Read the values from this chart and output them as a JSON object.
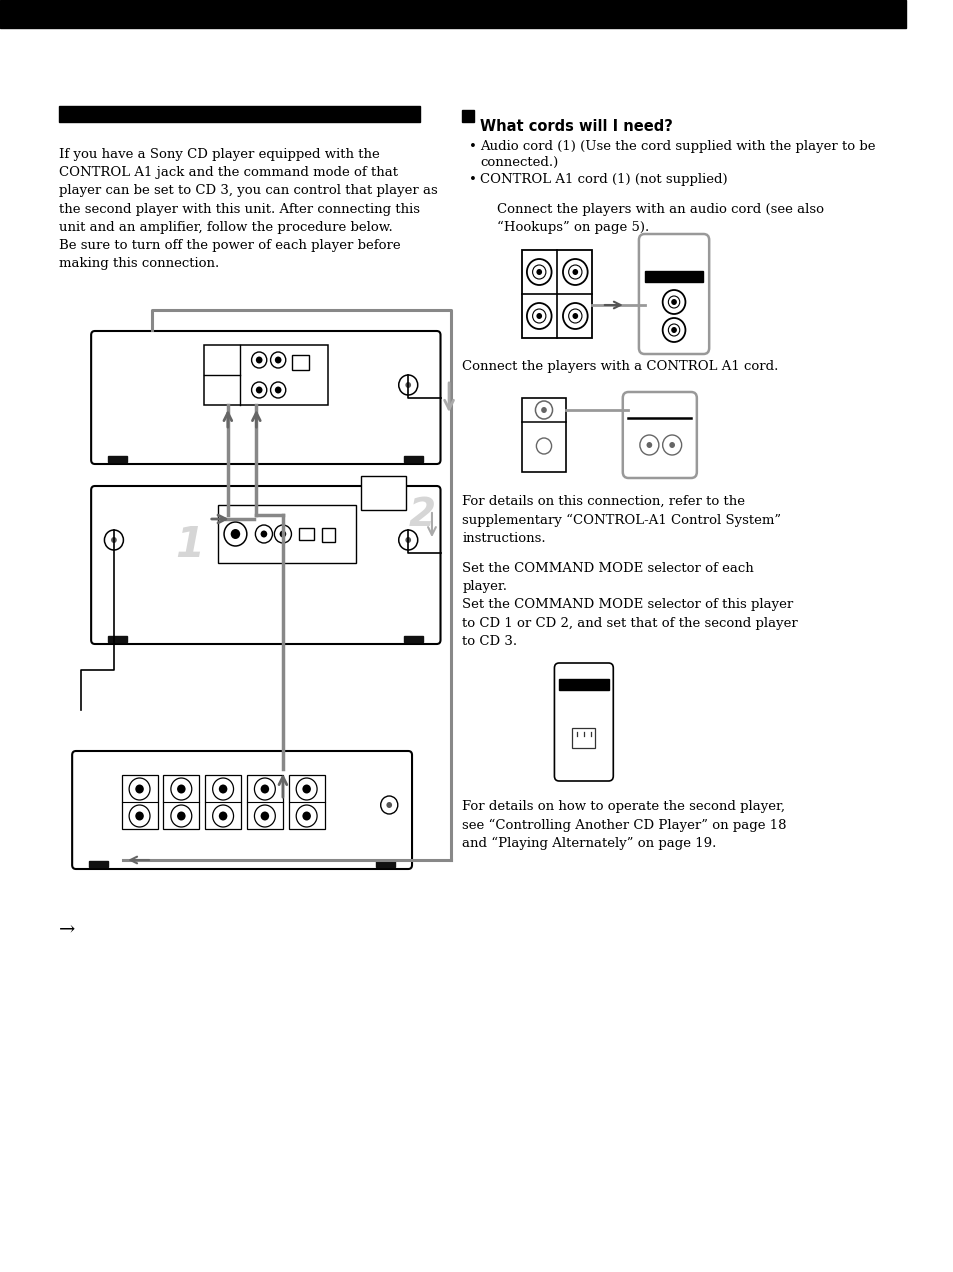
{
  "bg_color": "#ffffff",
  "left_text": "If you have a Sony CD player equipped with the\nCONTROL A1 jack and the command mode of that\nplayer can be set to CD 3, you can control that player as\nthe second player with this unit. After connecting this\nunit and an amplifier, follow the procedure below.\nBe sure to turn off the power of each player before\nmaking this connection.",
  "right_bold_heading": "What cords will I need?",
  "right_bullet1_a": "Audio cord (1) (Use the cord supplied with the player to be",
  "right_bullet1_b": "connected.)",
  "right_bullet2": "CONTROL A1 cord (1) (not supplied)",
  "right_para1": "Connect the players with an audio cord (see also\n“Hookups” on page 5).",
  "right_para2": "Connect the players with a CONTROL A1 cord.",
  "right_para3": "For details on this connection, refer to the\nsupplementary “CONTROL-A1 Control System”\ninstructions.",
  "right_para4": "Set the COMMAND MODE selector of each\nplayer.\nSet the COMMAND MODE selector of this player\nto CD 1 or CD 2, and set that of the second player\nto CD 3.",
  "right_para5": "For details on how to operate the second player,\nsee “Controlling Another CD Player” on page 18\nand “Playing Alternately” on page 19.",
  "bullet": "•",
  "wire_color": "#888888",
  "line_color": "#000000"
}
